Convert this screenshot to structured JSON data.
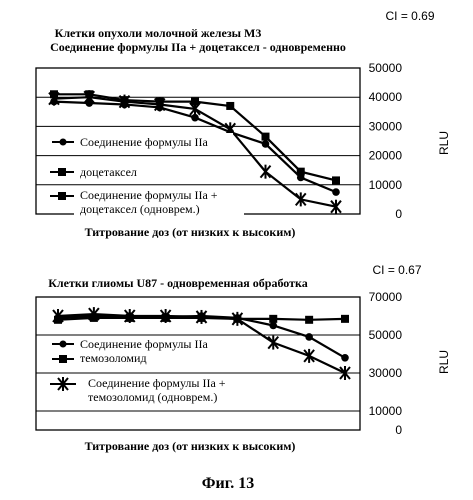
{
  "figure": {
    "caption": "Фиг. 13"
  },
  "chart_data": [
    {
      "type": "line",
      "title": "Клетки опухоли молочной железы М3",
      "subtitle": "Соединение формулы IIa + доцетаксел - одновременно",
      "ci_label": "CI = 0.69",
      "xlabel": "Титрование доз (от низких к высоким)",
      "ylabel": "RLU",
      "ylim": [
        0,
        50000
      ],
      "yticks": [
        "0",
        "10000",
        "20000",
        "30000",
        "40000",
        "50000"
      ],
      "grid": true,
      "legend_position": "overlay-left",
      "x": [
        1,
        2,
        3,
        4,
        5,
        6,
        7,
        8,
        9
      ],
      "series": [
        {
          "name": "Соединение формулы IIa",
          "marker": "dot",
          "values": [
            38500,
            38000,
            37500,
            36500,
            33000,
            28000,
            24000,
            12500,
            7500
          ]
        },
        {
          "name": "доцетаксел",
          "marker": "square",
          "values": [
            41000,
            41000,
            39000,
            38500,
            38500,
            37000,
            26500,
            14500,
            11500
          ]
        },
        {
          "name": "Соединение формулы IIa + доцетаксел (одноврем.)",
          "marker": "star",
          "values": [
            39500,
            40000,
            38500,
            37500,
            36000,
            29000,
            14500,
            5000,
            2500
          ]
        }
      ]
    },
    {
      "type": "line",
      "title": "Клетки глиомы U87 - одновременная обработка",
      "ci_label": "CI = 0.67",
      "xlabel": "Титрование доз (от низких к высоким)",
      "ylabel": "RLU",
      "ylim": [
        0,
        70000
      ],
      "yticks": [
        "0",
        "10000",
        "30000",
        "50000",
        "70000"
      ],
      "grid": true,
      "legend_position": "overlay-left",
      "x": [
        1,
        2,
        3,
        4,
        5,
        6,
        7,
        8,
        9
      ],
      "series": [
        {
          "name": "Соединение формулы IIa",
          "marker": "dot",
          "values": [
            59000,
            60000,
            60000,
            59500,
            60000,
            59000,
            55000,
            49000,
            38000
          ]
        },
        {
          "name": "темозоломид",
          "marker": "square",
          "values": [
            58000,
            59000,
            59000,
            59000,
            59000,
            58500,
            58500,
            58000,
            58500
          ]
        },
        {
          "name": "Соединение формулы IIa + темозоломид (одноврем.)",
          "marker": "star",
          "values": [
            60000,
            61000,
            60000,
            60000,
            59500,
            58500,
            46000,
            39000,
            30000
          ]
        }
      ]
    }
  ]
}
